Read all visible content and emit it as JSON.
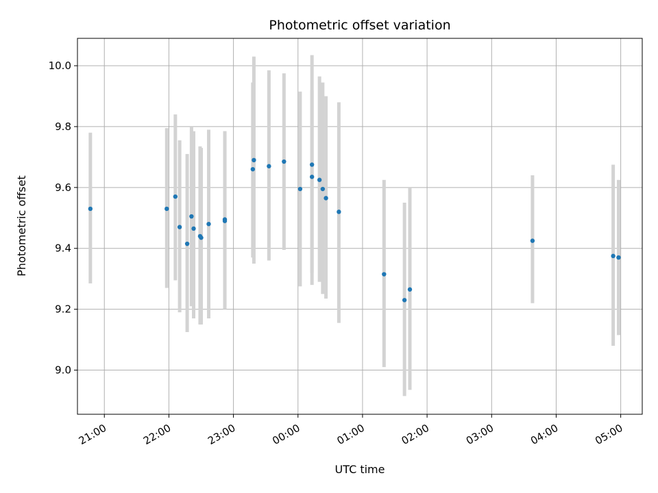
{
  "chart_data": {
    "type": "scatter",
    "title": "Photometric offset variation",
    "xlabel": "UTC time",
    "ylabel": "Photometric offset",
    "x_unit": "time",
    "xlim": [
      "20:35",
      "29:20"
    ],
    "ylim": [
      8.855,
      10.09
    ],
    "x_ticks": [
      {
        "t": "21:00",
        "label": "21:00"
      },
      {
        "t": "22:00",
        "label": "22:00"
      },
      {
        "t": "23:00",
        "label": "23:00"
      },
      {
        "t": "24:00",
        "label": "00:00"
      },
      {
        "t": "25:00",
        "label": "01:00"
      },
      {
        "t": "26:00",
        "label": "02:00"
      },
      {
        "t": "27:00",
        "label": "03:00"
      },
      {
        "t": "28:00",
        "label": "04:00"
      },
      {
        "t": "29:00",
        "label": "05:00"
      }
    ],
    "y_ticks": [
      9.0,
      9.2,
      9.4,
      9.6,
      9.8,
      10.0
    ],
    "grid": true,
    "colors": {
      "point": "#1f77b4",
      "errorbar": "#d3d3d3",
      "grid": "#b0b0b0"
    },
    "series": [
      {
        "points": [
          {
            "t": "20:47",
            "y": 9.53,
            "lo": 9.285,
            "hi": 9.78
          },
          {
            "t": "21:58",
            "y": 9.53,
            "lo": 9.27,
            "hi": 9.795
          },
          {
            "t": "22:06",
            "y": 9.57,
            "lo": 9.295,
            "hi": 9.84
          },
          {
            "t": "22:10",
            "y": 9.47,
            "lo": 9.19,
            "hi": 9.755
          },
          {
            "t": "22:17",
            "y": 9.415,
            "lo": 9.125,
            "hi": 9.71
          },
          {
            "t": "22:21",
            "y": 9.505,
            "lo": 9.21,
            "hi": 9.8
          },
          {
            "t": "22:23",
            "y": 9.465,
            "lo": 9.17,
            "hi": 9.785
          },
          {
            "t": "22:29",
            "y": 9.44,
            "lo": 9.15,
            "hi": 9.735
          },
          {
            "t": "22:30",
            "y": 9.435,
            "lo": 9.15,
            "hi": 9.73
          },
          {
            "t": "22:37",
            "y": 9.48,
            "lo": 9.17,
            "hi": 9.79
          },
          {
            "t": "22:52",
            "y": 9.495,
            "lo": 9.2,
            "hi": 9.785
          },
          {
            "t": "22:52",
            "y": 9.49,
            "lo": 9.2,
            "hi": 9.785
          },
          {
            "t": "23:18",
            "y": 9.66,
            "lo": 9.37,
            "hi": 9.945
          },
          {
            "t": "23:19",
            "y": 9.69,
            "lo": 9.35,
            "hi": 10.03
          },
          {
            "t": "23:33",
            "y": 9.67,
            "lo": 9.36,
            "hi": 9.985
          },
          {
            "t": "23:47",
            "y": 9.685,
            "lo": 9.395,
            "hi": 9.975
          },
          {
            "t": "24:02",
            "y": 9.595,
            "lo": 9.275,
            "hi": 9.915
          },
          {
            "t": "24:13",
            "y": 9.635,
            "lo": 9.28,
            "hi": 9.92
          },
          {
            "t": "24:13",
            "y": 9.675,
            "lo": 9.32,
            "hi": 10.035
          },
          {
            "t": "24:20",
            "y": 9.625,
            "lo": 9.29,
            "hi": 9.965
          },
          {
            "t": "24:23",
            "y": 9.595,
            "lo": 9.25,
            "hi": 9.945
          },
          {
            "t": "24:26",
            "y": 9.565,
            "lo": 9.235,
            "hi": 9.9
          },
          {
            "t": "24:38",
            "y": 9.52,
            "lo": 9.155,
            "hi": 9.88
          },
          {
            "t": "25:20",
            "y": 9.315,
            "lo": 9.01,
            "hi": 9.625
          },
          {
            "t": "25:39",
            "y": 9.23,
            "lo": 8.915,
            "hi": 9.55
          },
          {
            "t": "25:44",
            "y": 9.265,
            "lo": 8.935,
            "hi": 9.6
          },
          {
            "t": "27:38",
            "y": 9.425,
            "lo": 9.22,
            "hi": 9.64
          },
          {
            "t": "28:53",
            "y": 9.375,
            "lo": 9.08,
            "hi": 9.675
          },
          {
            "t": "28:58",
            "y": 9.37,
            "lo": 9.115,
            "hi": 9.625
          }
        ]
      }
    ]
  }
}
